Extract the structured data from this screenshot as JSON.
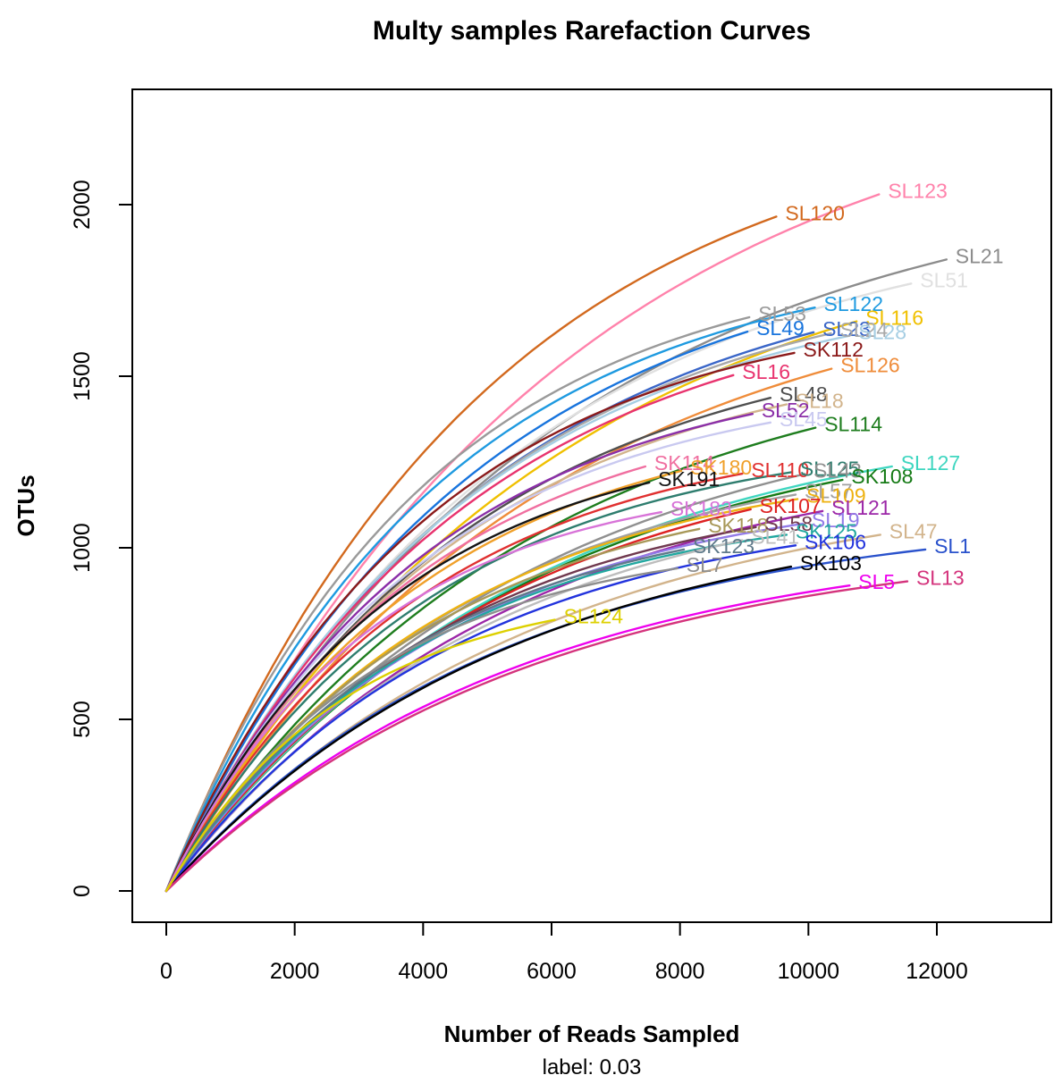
{
  "title": "Multy samples Rarefaction Curves",
  "x_axis": {
    "label": "Number of Reads Sampled",
    "sub_label": "label: 0.03",
    "ticks": [
      0,
      2000,
      4000,
      6000,
      8000,
      10000,
      12000
    ],
    "range": [
      -530,
      13780
    ]
  },
  "y_axis": {
    "label": "OTUs",
    "ticks": [
      0,
      500,
      1000,
      1500,
      2000
    ],
    "range": [
      -91,
      2336
    ]
  },
  "chart_data": {
    "type": "line",
    "title": "Multy samples Rarefaction Curves",
    "xlabel": "Number of Reads Sampled",
    "ylabel": "OTUs",
    "xlim": [
      -530,
      13780
    ],
    "ylim": [
      -91,
      2336
    ],
    "grid": false,
    "legend": "labels at curve ends",
    "curve_shape": "rarefaction (saturating), all curves start at (0,0)",
    "series": [
      {
        "name": "SL123",
        "color": "#ff82ab",
        "end_reads": 11100,
        "end_otus": 2030
      },
      {
        "name": "SL120",
        "color": "#d2691e",
        "end_reads": 9500,
        "end_otus": 1965
      },
      {
        "name": "SL21",
        "color": "#8c8c8c",
        "end_reads": 12150,
        "end_otus": 1840
      },
      {
        "name": "SL51",
        "color": "#e0e0e0",
        "end_reads": 11600,
        "end_otus": 1770
      },
      {
        "name": "SL53",
        "color": "#9a9a9a",
        "end_reads": 9080,
        "end_otus": 1672
      },
      {
        "name": "SL122",
        "color": "#1e9ae0",
        "end_reads": 10100,
        "end_otus": 1700
      },
      {
        "name": "SL116",
        "color": "#f0c000",
        "end_reads": 10750,
        "end_otus": 1660
      },
      {
        "name": "SL49",
        "color": "#1874dd",
        "end_reads": 9050,
        "end_otus": 1630
      },
      {
        "name": "SL23",
        "color": "#3a66c8",
        "end_reads": 10080,
        "end_otus": 1628
      },
      {
        "name": "SL24",
        "color": "#a8a8a8",
        "end_reads": 10350,
        "end_otus": 1625
      },
      {
        "name": "SL28",
        "color": "#a6cee3",
        "end_reads": 10640,
        "end_otus": 1618
      },
      {
        "name": "SK112",
        "color": "#8b1a1a",
        "end_reads": 9780,
        "end_otus": 1568
      },
      {
        "name": "SL126",
        "color": "#ef8c3a",
        "end_reads": 10360,
        "end_otus": 1522
      },
      {
        "name": "SL16",
        "color": "#e8336e",
        "end_reads": 8830,
        "end_otus": 1503
      },
      {
        "name": "SL48",
        "color": "#4f4f4f",
        "end_reads": 9410,
        "end_otus": 1437
      },
      {
        "name": "SL18",
        "color": "#d2b48c",
        "end_reads": 9660,
        "end_otus": 1418
      },
      {
        "name": "SL52",
        "color": "#8b2fa8",
        "end_reads": 9130,
        "end_otus": 1390
      },
      {
        "name": "SL45",
        "color": "#c9c9f0",
        "end_reads": 9410,
        "end_otus": 1365
      },
      {
        "name": "SL114",
        "color": "#1e7d1e",
        "end_reads": 10110,
        "end_otus": 1350
      },
      {
        "name": "SK114",
        "color": "#f06fa0",
        "end_reads": 7460,
        "end_otus": 1237
      },
      {
        "name": "SK180",
        "color": "#f0a02a",
        "end_reads": 8020,
        "end_otus": 1224
      },
      {
        "name": "SK191",
        "color": "#141414",
        "end_reads": 7520,
        "end_otus": 1190
      },
      {
        "name": "SL110",
        "color": "#e03030",
        "end_reads": 8970,
        "end_otus": 1216
      },
      {
        "name": "SL125",
        "color": "#2e7d6e",
        "end_reads": 9730,
        "end_otus": 1220
      },
      {
        "name": "SL43",
        "color": "#909090",
        "end_reads": 9940,
        "end_otus": 1215
      },
      {
        "name": "SK108",
        "color": "#157a15",
        "end_reads": 10530,
        "end_otus": 1198
      },
      {
        "name": "SL127",
        "color": "#3fd6c0",
        "end_reads": 11300,
        "end_otus": 1237
      },
      {
        "name": "SL57",
        "color": "#a0a0a0",
        "end_reads": 9800,
        "end_otus": 1155
      },
      {
        "name": "SL109",
        "color": "#eeb211",
        "end_reads": 9830,
        "end_otus": 1142
      },
      {
        "name": "SK183",
        "color": "#d873d8",
        "end_reads": 7710,
        "end_otus": 1104
      },
      {
        "name": "SK107",
        "color": "#dd2222",
        "end_reads": 9100,
        "end_otus": 1112
      },
      {
        "name": "SL121",
        "color": "#9c27a8",
        "end_reads": 10220,
        "end_otus": 1107
      },
      {
        "name": "SK118",
        "color": "#a89858",
        "end_reads": 8300,
        "end_otus": 1055
      },
      {
        "name": "SL58",
        "color": "#70394f",
        "end_reads": 9180,
        "end_otus": 1060
      },
      {
        "name": "SL19",
        "color": "#927be8",
        "end_reads": 9910,
        "end_otus": 1070
      },
      {
        "name": "SK125",
        "color": "#22a8a0",
        "end_reads": 9660,
        "end_otus": 1038
      },
      {
        "name": "SL41",
        "color": "#bdbdbd",
        "end_reads": 8970,
        "end_otus": 1022
      },
      {
        "name": "SL47",
        "color": "#d2b48c",
        "end_reads": 11120,
        "end_otus": 1038
      },
      {
        "name": "SK123",
        "color": "#5f7a8a",
        "end_reads": 8060,
        "end_otus": 995
      },
      {
        "name": "SK106",
        "color": "#2233dd",
        "end_reads": 9800,
        "end_otus": 1007
      },
      {
        "name": "SL1",
        "color": "#2a52cc",
        "end_reads": 11820,
        "end_otus": 995
      },
      {
        "name": "SL7",
        "color": "#8e8e8e",
        "end_reads": 7960,
        "end_otus": 940
      },
      {
        "name": "SK103",
        "color": "#000000",
        "end_reads": 9730,
        "end_otus": 945
      },
      {
        "name": "SL5",
        "color": "#ee00ee",
        "end_reads": 10640,
        "end_otus": 890
      },
      {
        "name": "SL13",
        "color": "#d4337c",
        "end_reads": 11540,
        "end_otus": 902
      },
      {
        "name": "SL124",
        "color": "#ddd000",
        "end_reads": 6050,
        "end_otus": 790
      }
    ]
  }
}
